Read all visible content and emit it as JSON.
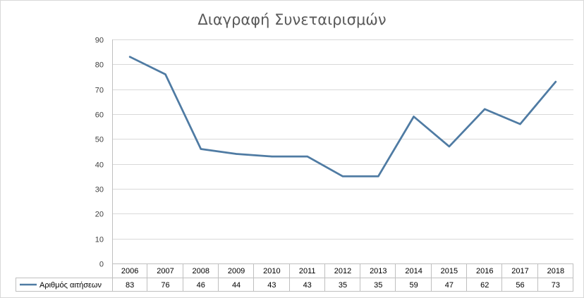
{
  "chart_data": {
    "type": "line",
    "title": "Διαγραφή Συνεταιρισμών",
    "xlabel": "",
    "ylabel": "",
    "categories": [
      "2006",
      "2007",
      "2008",
      "2009",
      "2010",
      "2011",
      "2012",
      "2013",
      "2014",
      "2015",
      "2016",
      "2017",
      "2018"
    ],
    "series": [
      {
        "name": "Αριθμός αιτήσεων",
        "values": [
          83,
          76,
          46,
          44,
          43,
          43,
          35,
          35,
          59,
          47,
          62,
          56,
          73
        ],
        "color": "#4f7ba3"
      }
    ],
    "ylim": [
      0,
      90
    ],
    "yticks": [
      "0",
      "10",
      "20",
      "30",
      "40",
      "50",
      "60",
      "70",
      "80",
      "90"
    ],
    "grid": true,
    "data_table": true,
    "legend": "data-table-left"
  }
}
